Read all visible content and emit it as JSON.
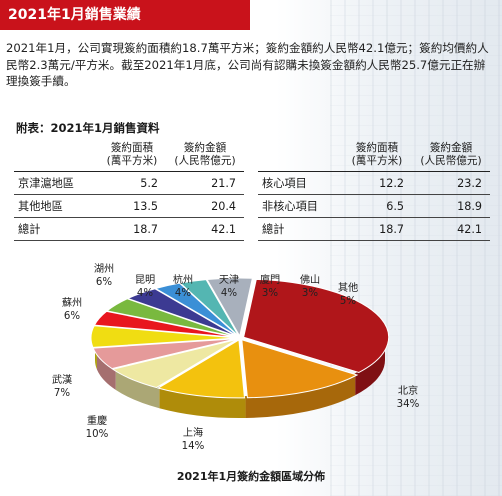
{
  "title": "2021年1月銷售業績",
  "intro": "2021年1月，公司實現簽約面積約18.7萬平方米；簽約金額約人民幣42.1億元；簽約均價約人民幣2.3萬元/平方米。截至2021年1月底，公司尚有認購未換簽金額約人民幣25.7億元正在辦理換簽手續。",
  "table_heading": "附表：2021年1月銷售資料",
  "table1": {
    "col1": "簽約面積\n(萬平方米)",
    "col2": "簽約金額\n(人民幣億元)",
    "rows": [
      {
        "name": "京津滬地區",
        "area": "5.2",
        "amount": "21.7"
      },
      {
        "name": "其他地區",
        "area": "13.5",
        "amount": "20.4"
      },
      {
        "name": "總計",
        "area": "18.7",
        "amount": "42.1"
      }
    ]
  },
  "table2": {
    "col1": "簽約面積\n(萬平方米)",
    "col2": "簽約金額\n(人民幣億元)",
    "rows": [
      {
        "name": "核心項目",
        "area": "12.2",
        "amount": "23.2"
      },
      {
        "name": "非核心項目",
        "area": "6.5",
        "amount": "18.9"
      },
      {
        "name": "總計",
        "area": "18.7",
        "amount": "42.1"
      }
    ]
  },
  "chart_data": {
    "type": "pie",
    "title": "2021年1月簽約金額區域分佈",
    "slices": [
      {
        "name": "北京",
        "label": "34%",
        "value": 34,
        "color": "#b0161a"
      },
      {
        "name": "上海",
        "label": "14%",
        "value": 14,
        "color": "#e8900f"
      },
      {
        "name": "重慶",
        "label": "10%",
        "value": 10,
        "color": "#f3c20e"
      },
      {
        "name": "武漢",
        "label": "7%",
        "value": 7,
        "color": "#eee8a2"
      },
      {
        "name": "蘇州",
        "label": "6%",
        "value": 6,
        "color": "#e59a9a"
      },
      {
        "name": "湖州",
        "label": "6%",
        "value": 6,
        "color": "#f0dd12"
      },
      {
        "name": "昆明",
        "label": "4%",
        "value": 4,
        "color": "#e8171e"
      },
      {
        "name": "杭州",
        "label": "4%",
        "value": 4,
        "color": "#79b93f"
      },
      {
        "name": "天津",
        "label": "4%",
        "value": 4,
        "color": "#3c3a92"
      },
      {
        "name": "廈門",
        "label": "3%",
        "value": 3,
        "color": "#3b8fd6"
      },
      {
        "name": "佛山",
        "label": "3%",
        "value": 3,
        "color": "#54b6b2"
      },
      {
        "name": "其他",
        "label": "5%",
        "value": 5,
        "color": "#a8b0bc"
      }
    ]
  }
}
